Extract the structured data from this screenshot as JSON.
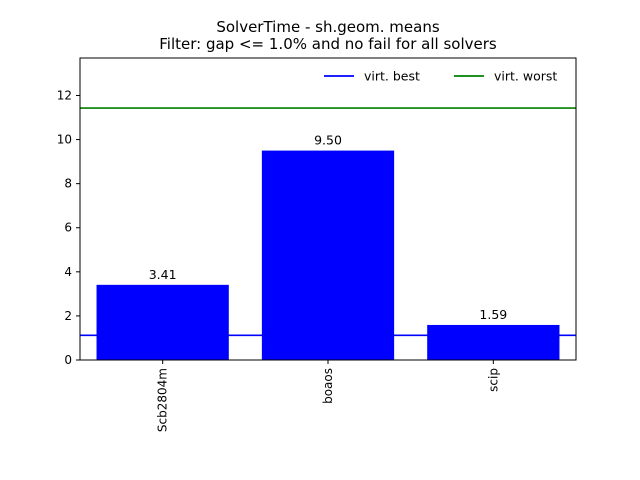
{
  "chart_data": {
    "type": "bar",
    "title": "SolverTime - sh.geom. means",
    "subtitle": "Filter: gap <= 1.0% and no fail for all solvers",
    "categories": [
      "Scb2804m",
      "boaos",
      "scip"
    ],
    "values": [
      3.41,
      9.5,
      1.59
    ],
    "value_labels": [
      "3.41",
      "9.50",
      "1.59"
    ],
    "bar_color": "#0000ff",
    "ylim": [
      0,
      13.7
    ],
    "yticks": [
      0,
      2,
      4,
      6,
      8,
      10,
      12
    ],
    "xlabel": "",
    "ylabel": "",
    "grid": false,
    "legend_position": "top-right",
    "reference_lines": [
      {
        "name": "virt. best",
        "value": 1.12,
        "color": "#0000ff"
      },
      {
        "name": "virt. worst",
        "value": 11.43,
        "color": "#008000"
      }
    ]
  }
}
